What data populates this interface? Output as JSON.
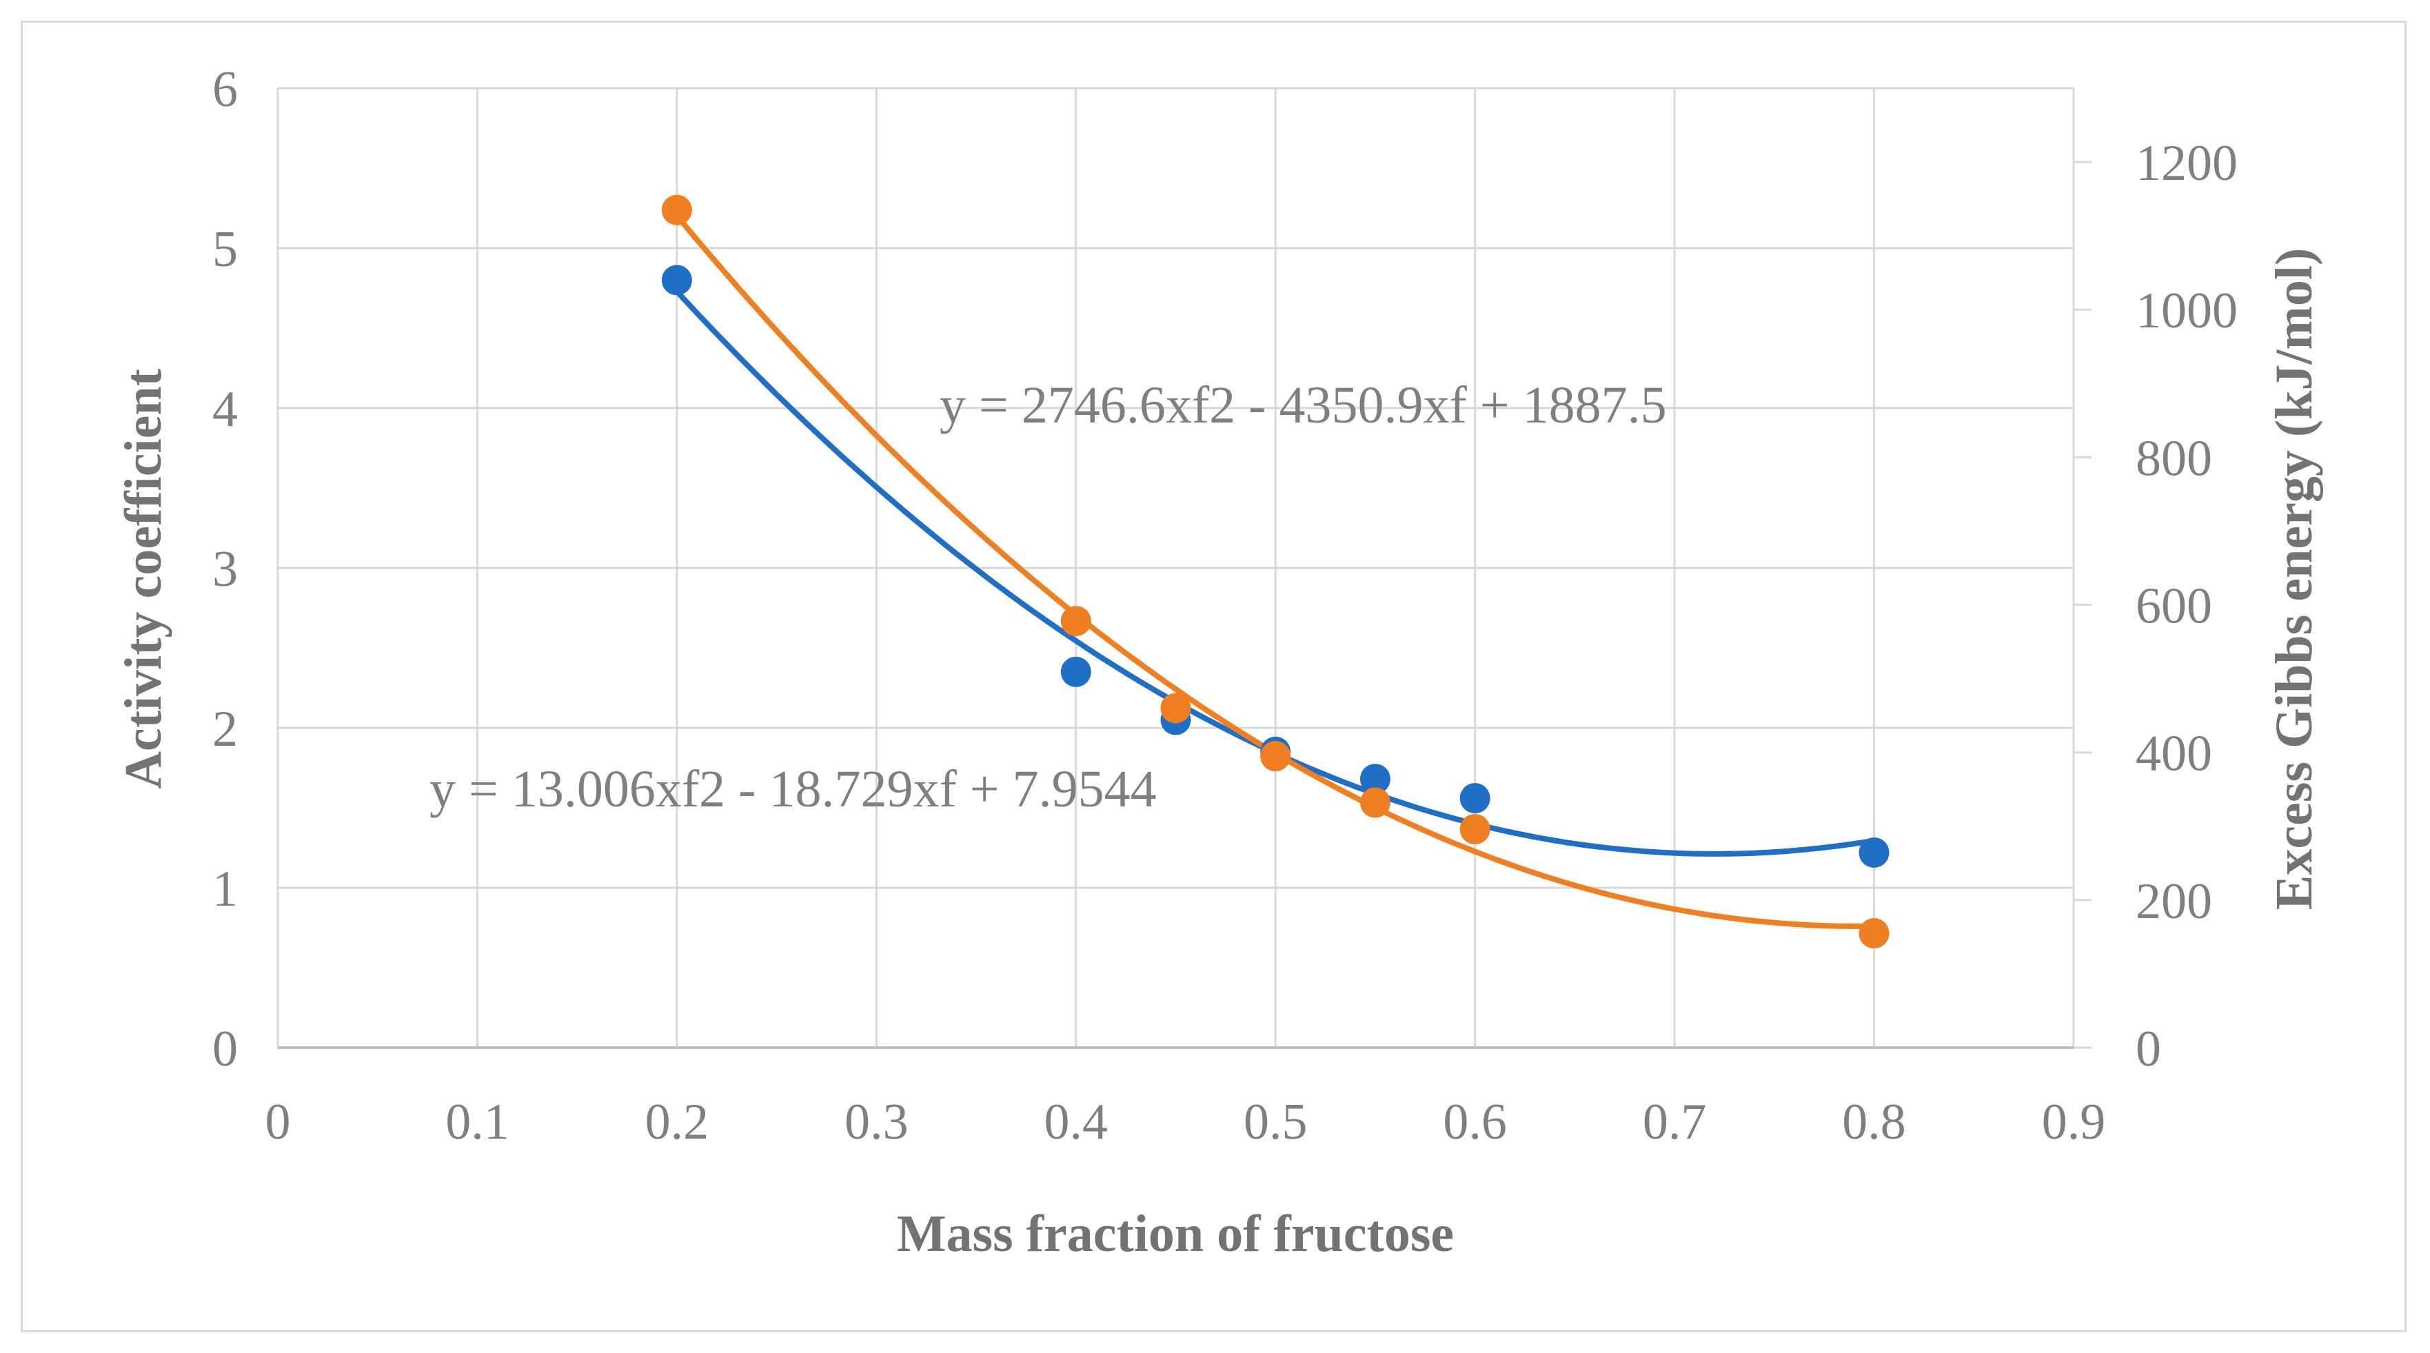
{
  "chart_data": {
    "type": "scatter",
    "title": "",
    "xlabel": "Mass fraction of fructose",
    "ylabel": "Activity coefficient",
    "y2label": "Excess Gibbs energy (kJ/mol)",
    "xlim": [
      0,
      0.9
    ],
    "ylim": [
      0,
      6
    ],
    "y2lim": [
      0,
      1300
    ],
    "x_ticks": [
      0,
      0.1,
      0.2,
      0.3,
      0.4,
      0.5,
      0.6,
      0.7,
      0.8,
      0.9
    ],
    "x_tick_labels": [
      "0",
      "0.1",
      "0.2",
      "0.3",
      "0.4",
      "0.5",
      "0.6",
      "0.7",
      "0.8",
      "0.9"
    ],
    "y_ticks": [
      0,
      1,
      2,
      3,
      4,
      5,
      6
    ],
    "y_tick_labels": [
      "0",
      "1",
      "2",
      "3",
      "4",
      "5",
      "6"
    ],
    "y2_ticks": [
      0,
      200,
      400,
      600,
      800,
      1000,
      1200
    ],
    "y2_tick_labels": [
      "0",
      "200",
      "400",
      "600",
      "800",
      "1000",
      "1200"
    ],
    "grid": true,
    "series": [
      {
        "name": "Activity coefficient",
        "axis": "left",
        "color": "#1f6fc6",
        "x": [
          0.2,
          0.4,
          0.45,
          0.5,
          0.55,
          0.6,
          0.8
        ],
        "y": [
          4.8,
          2.35,
          2.05,
          1.85,
          1.68,
          1.56,
          1.22
        ],
        "trendline": {
          "type": "poly2",
          "coefficients": [
            13.006,
            -18.729,
            7.9544
          ],
          "x_range": [
            0.2,
            0.8
          ]
        },
        "equation_label": "y = 13.006xf2 - 18.729xf + 7.9544"
      },
      {
        "name": "Excess Gibbs energy",
        "axis": "right",
        "color": "#f07f22",
        "x": [
          0.2,
          0.4,
          0.45,
          0.5,
          0.55,
          0.6,
          0.8
        ],
        "y": [
          1135,
          578,
          460,
          395,
          332,
          296,
          155
        ],
        "trendline": {
          "type": "poly2",
          "coefficients": [
            2746.6,
            -4350.9,
            1887.5
          ],
          "x_range": [
            0.2,
            0.8
          ]
        },
        "equation_label": "y = 2746.6xf2 - 4350.9xf + 1887.5"
      }
    ]
  }
}
